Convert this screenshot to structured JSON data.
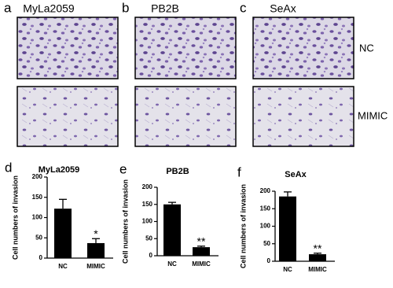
{
  "micrographs": {
    "columns": [
      {
        "letter": "a",
        "title": "MyLa2059"
      },
      {
        "letter": "b",
        "title": "PB2B"
      },
      {
        "letter": "c",
        "title": "SeAx"
      }
    ],
    "rows": [
      "NC",
      "MIMIC"
    ]
  },
  "chart_data": [
    {
      "type": "bar",
      "label": "d",
      "title": "MyLa2059",
      "y_label": "Cell numbers of invasion",
      "categories": [
        "NC",
        "MIMIC"
      ],
      "values": [
        122,
        37
      ],
      "errors": [
        23,
        11
      ],
      "significance": [
        null,
        "*"
      ],
      "color": "#000000",
      "ylim": [
        0,
        200
      ],
      "yticks": [
        0,
        50,
        100,
        150,
        200
      ]
    },
    {
      "type": "bar",
      "label": "e",
      "title": "PB2B",
      "y_label": "Cell numbers of invasion",
      "categories": [
        "NC",
        "MIMIC"
      ],
      "values": [
        150,
        25
      ],
      "errors": [
        6,
        3
      ],
      "significance": [
        null,
        "**"
      ],
      "color": "#000000",
      "ylim": [
        0,
        200
      ],
      "yticks": [
        0,
        50,
        100,
        150,
        200
      ]
    },
    {
      "type": "bar",
      "label": "f",
      "title": "SeAx",
      "y_label": "Cell numbers of invasion",
      "categories": [
        "NC",
        "MIMIC"
      ],
      "values": [
        185,
        20
      ],
      "errors": [
        13,
        3
      ],
      "significance": [
        null,
        "**"
      ],
      "color": "#000000",
      "ylim": [
        0,
        200
      ],
      "yticks": [
        0,
        50,
        100,
        150,
        200
      ]
    }
  ]
}
